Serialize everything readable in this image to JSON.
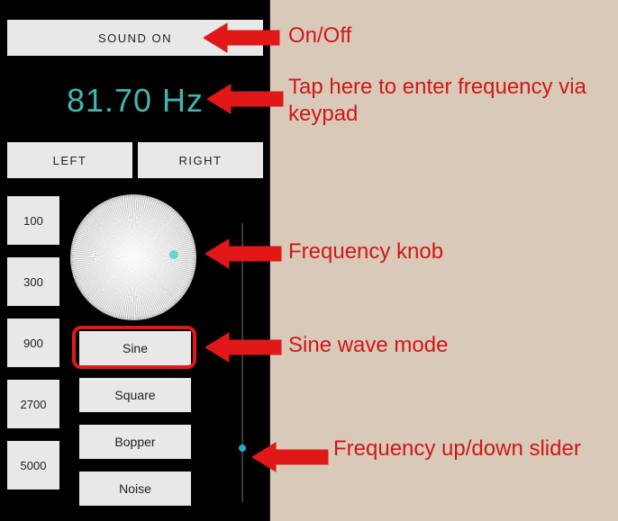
{
  "colors": {
    "app_bg": "#000000",
    "panel_bg": "#e8e8e8",
    "accent_teal": "#3fb6b0",
    "knob_dot": "#65d8c8",
    "slider_thumb": "#2aa8c8",
    "annotation_red": "#e01818",
    "page_bg": "#d9c9b8"
  },
  "sound_button_label": "SOUND ON",
  "frequency_display": "81.70 Hz",
  "channels": {
    "left": "LEFT",
    "right": "RIGHT"
  },
  "presets": [
    "100",
    "300",
    "900",
    "2700",
    "5000"
  ],
  "waveforms": [
    "Sine",
    "Square",
    "Bopper",
    "Noise"
  ],
  "slider": {
    "position_pct": 82
  },
  "annotations": {
    "on_off": "On/Off",
    "freq_tap": "Tap here to enter frequency via keypad",
    "knob": "Frequency knob",
    "sine_mode": "Sine wave mode",
    "slider": "Frequency up/down slider"
  }
}
